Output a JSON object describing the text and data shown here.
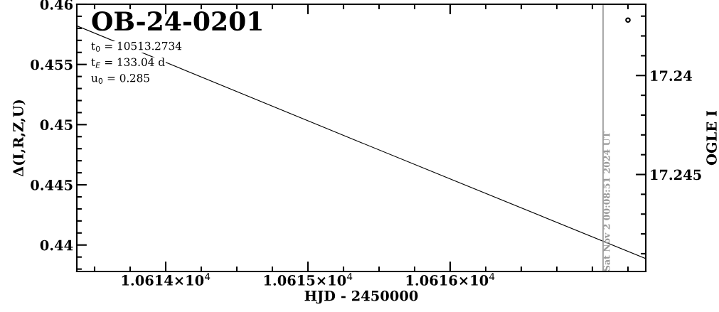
{
  "chart_data": {
    "type": "line",
    "title": "OB-24-0201",
    "xlabel": "HJD - 2450000",
    "ylabel": "Δ(I,R,Z,U)",
    "y2label": "OGLE I",
    "annotations": [
      "t$_{0}$ = 10513.2734",
      "t$_{E}$ = 133.04 d",
      "u$_{0}$ = 0.285",
      "Sat Nov 2 00:08:51 2024 UT"
    ],
    "series": [
      {
        "type": "line",
        "color": "#000000",
        "x": [
          10613.375,
          10615.375,
          10617.375
        ],
        "values": [
          0.45821,
          0.4485,
          0.43887
        ]
      },
      {
        "type": "scatter",
        "axis": "y2",
        "marker": "circle",
        "color": "#000000",
        "x": [
          10617.25
        ],
        "values": [
          17.2372
        ]
      }
    ],
    "xlim": [
      10613.375,
      10617.375
    ],
    "xticks": [
      {
        "value": 10613.5,
        "label": null
      },
      {
        "value": 10613.75,
        "label": null
      },
      {
        "value": 10614,
        "label": "1.0614×10$^{4}$"
      },
      {
        "value": 10614.25,
        "label": null
      },
      {
        "value": 10614.5,
        "label": null
      },
      {
        "value": 10614.75,
        "label": null
      },
      {
        "value": 10615,
        "label": "1.0615×10$^{4}$"
      },
      {
        "value": 10615.25,
        "label": null
      },
      {
        "value": 10615.5,
        "label": null
      },
      {
        "value": 10615.75,
        "label": null
      },
      {
        "value": 10616,
        "label": "1.0616×10$^{4}$"
      },
      {
        "value": 10616.25,
        "label": null
      },
      {
        "value": 10616.5,
        "label": null
      },
      {
        "value": 10616.75,
        "label": null
      },
      {
        "value": 10617,
        "label": null
      },
      {
        "value": 10617.25,
        "label": null
      }
    ],
    "ylim": [
      0.4378,
      0.46
    ],
    "yticks": [
      0.44,
      0.445,
      0.45,
      0.455,
      0.46
    ],
    "y2lim": [
      17.2499,
      17.2364
    ],
    "y2ticks": [
      17.24,
      17.245
    ],
    "ref_lines": [
      {
        "axis": "x",
        "value": 10617.075,
        "color": "#999999"
      }
    ],
    "grid": false,
    "legend": false
  }
}
